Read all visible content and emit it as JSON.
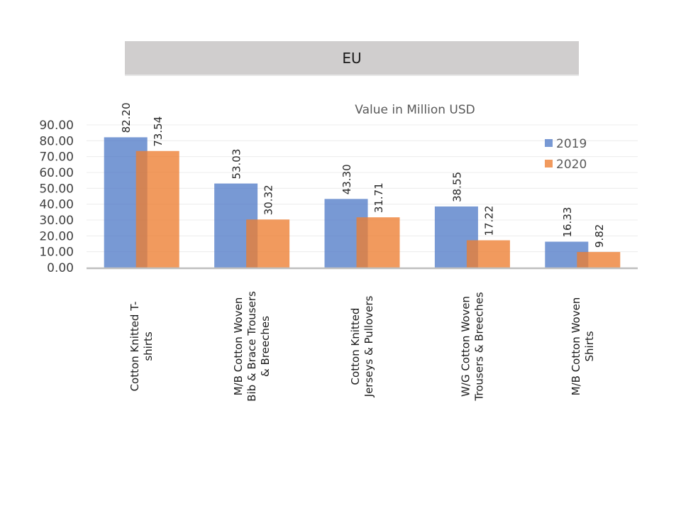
{
  "banner": {
    "title": "EU"
  },
  "chart_data": {
    "type": "bar",
    "title": "EU",
    "subtitle": "Value in Million USD",
    "xlabel": "",
    "ylabel": "",
    "ylim": [
      0,
      90
    ],
    "ytick_step": 10,
    "ytick_labels": [
      "0.00",
      "10.00",
      "20.00",
      "30.00",
      "40.00",
      "50.00",
      "60.00",
      "70.00",
      "80.00",
      "90.00"
    ],
    "grid": true,
    "legend_position": "top-right",
    "categories": [
      [
        "Cotton  Knitted  T-",
        "shirts"
      ],
      [
        "M/B Cotton  Woven",
        "Bib & Brace Trousers",
        "& Breeches"
      ],
      [
        "Cotton  Knitted",
        "Jerseys &  Pullovers"
      ],
      [
        "W/G Cotton  Woven",
        "Trousers & Breeches"
      ],
      [
        "M/B Cotton  Woven",
        "Shirts"
      ]
    ],
    "series": [
      {
        "name": "2019",
        "color": "#4472c4",
        "values": [
          82.2,
          53.03,
          43.3,
          38.55,
          16.33
        ],
        "labels": [
          "82.20",
          "53.03",
          "43.30",
          "38.55",
          "16.33"
        ]
      },
      {
        "name": "2020",
        "color": "#ed7d31",
        "values": [
          73.54,
          30.32,
          31.71,
          17.22,
          9.82
        ],
        "labels": [
          "73.54",
          "30.32",
          "31.71",
          "17.22",
          "9.82"
        ]
      }
    ]
  }
}
